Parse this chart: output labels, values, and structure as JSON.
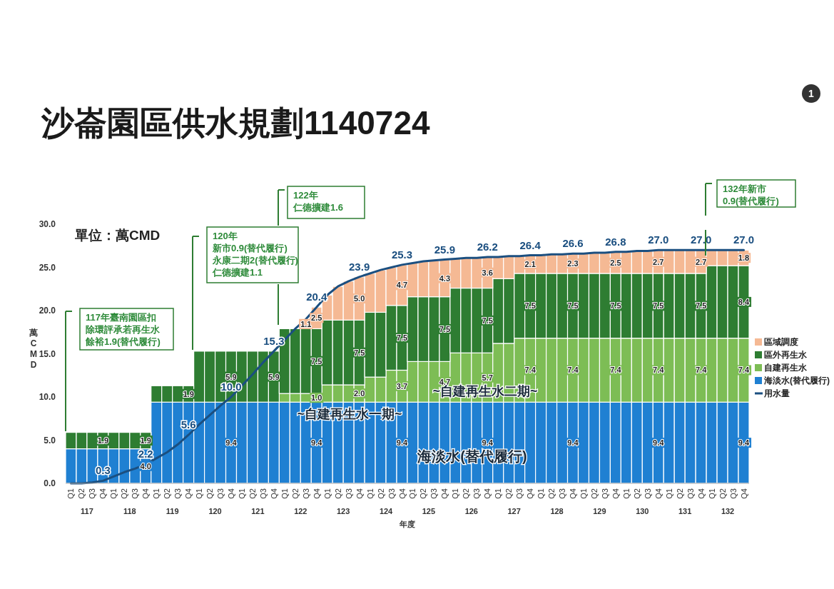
{
  "chart_data": {
    "type": "bar",
    "stacked": true,
    "title": "沙崙園區供水規劃1140724",
    "xlabel": "年度",
    "ylabel": "萬CMD",
    "legend": "right",
    "categories": [
      "Q1",
      "Q2",
      "Q3",
      "Q4",
      "Q1",
      "Q2",
      "Q3",
      "Q4",
      "Q1",
      "Q2",
      "Q3",
      "Q4",
      "Q1",
      "Q2",
      "Q3",
      "Q4",
      "Q1",
      "Q2",
      "Q3",
      "Q4",
      "Q1",
      "Q2",
      "Q3",
      "Q4",
      "Q1",
      "Q2",
      "Q3",
      "Q4",
      "Q1",
      "Q2",
      "Q3",
      "Q4",
      "Q1",
      "Q2",
      "Q3",
      "Q4",
      "Q1",
      "Q2",
      "Q3",
      "Q4",
      "Q1",
      "Q2",
      "Q3",
      "Q4",
      "Q1",
      "Q2",
      "Q3",
      "Q4",
      "Q1",
      "Q2",
      "Q3",
      "Q4",
      "Q1",
      "Q2",
      "Q3",
      "Q4",
      "Q1",
      "Q2",
      "Q3",
      "Q4",
      "Q1",
      "Q2",
      "Q3",
      "Q4"
    ],
    "ylim": [
      0,
      30
    ],
    "yticks": [
      {
        "value": 0,
        "label": "0.0"
      },
      {
        "value": 5,
        "label": "5.0"
      },
      {
        "value": 10,
        "label": "10.0"
      },
      {
        "value": 15,
        "label": "15.0"
      },
      {
        "value": 20,
        "label": "20.0"
      },
      {
        "value": 25,
        "label": "25.0"
      },
      {
        "value": 30,
        "label": "30.0"
      }
    ],
    "series": [
      {
        "name": "海淡水(替代履行)",
        "color": "#1f80d2",
        "values": [
          4.0,
          4.0,
          4.0,
          4.0,
          4.0,
          4.0,
          4.0,
          4.0,
          9.4,
          9.4,
          9.4,
          9.4,
          9.4,
          9.4,
          9.4,
          9.4,
          9.4,
          9.4,
          9.4,
          9.4,
          9.4,
          9.4,
          9.4,
          9.4,
          9.4,
          9.4,
          9.4,
          9.4,
          9.4,
          9.4,
          9.4,
          9.4,
          9.4,
          9.4,
          9.4,
          9.4,
          9.4,
          9.4,
          9.4,
          9.4,
          9.4,
          9.4,
          9.4,
          9.4,
          9.4,
          9.4,
          9.4,
          9.4,
          9.4,
          9.4,
          9.4,
          9.4,
          9.4,
          9.4,
          9.4,
          9.4,
          9.4,
          9.4,
          9.4,
          9.4,
          9.4,
          9.4,
          9.4,
          9.4
        ],
        "value_labels": [
          null,
          null,
          null,
          null,
          null,
          null,
          null,
          "4.0",
          null,
          null,
          null,
          null,
          null,
          null,
          null,
          "9.4",
          null,
          null,
          null,
          null,
          null,
          null,
          null,
          "9.4",
          null,
          null,
          null,
          null,
          null,
          null,
          null,
          "9.4",
          null,
          null,
          null,
          null,
          null,
          null,
          null,
          "9.4",
          null,
          null,
          null,
          null,
          null,
          null,
          null,
          "9.4",
          null,
          null,
          null,
          null,
          null,
          null,
          null,
          "9.4",
          null,
          null,
          null,
          null,
          null,
          null,
          null,
          "9.4"
        ]
      },
      {
        "name": "自建再生水",
        "color": "#7dbd55",
        "values": [
          null,
          null,
          null,
          null,
          null,
          null,
          null,
          null,
          null,
          null,
          null,
          null,
          null,
          null,
          null,
          null,
          null,
          null,
          null,
          null,
          1.0,
          1.0,
          1.0,
          1.0,
          2.0,
          2.0,
          2.0,
          2.0,
          2.9,
          2.9,
          3.7,
          3.7,
          4.7,
          4.7,
          4.7,
          4.7,
          5.7,
          5.7,
          5.7,
          5.7,
          6.8,
          6.8,
          7.4,
          7.4,
          7.4,
          7.4,
          7.4,
          7.4,
          7.4,
          7.4,
          7.4,
          7.4,
          7.4,
          7.4,
          7.4,
          7.4,
          7.4,
          7.4,
          7.4,
          7.4,
          7.4,
          7.4,
          7.4,
          7.4
        ],
        "value_labels": [
          null,
          null,
          null,
          null,
          null,
          null,
          null,
          null,
          null,
          null,
          null,
          null,
          null,
          null,
          null,
          null,
          null,
          null,
          null,
          null,
          null,
          null,
          null,
          "1.0",
          null,
          null,
          null,
          "2.0",
          null,
          null,
          null,
          "3.7",
          null,
          null,
          null,
          "4.7",
          null,
          null,
          null,
          "5.7",
          null,
          null,
          null,
          "7.4",
          null,
          null,
          null,
          "7.4",
          null,
          null,
          null,
          "7.4",
          null,
          null,
          null,
          "7.4",
          null,
          null,
          null,
          "7.4",
          null,
          null,
          null,
          "7.4"
        ]
      },
      {
        "name": "區外再生水",
        "color": "#2e7d32",
        "values": [
          1.9,
          1.9,
          1.9,
          1.9,
          1.9,
          1.9,
          1.9,
          1.9,
          1.9,
          1.9,
          1.9,
          1.9,
          5.9,
          5.9,
          5.9,
          5.9,
          5.9,
          5.9,
          5.9,
          5.9,
          7.5,
          7.5,
          7.5,
          7.5,
          7.5,
          7.5,
          7.5,
          7.5,
          7.5,
          7.5,
          7.5,
          7.5,
          7.5,
          7.5,
          7.5,
          7.5,
          7.5,
          7.5,
          7.5,
          7.5,
          7.5,
          7.5,
          7.5,
          7.5,
          7.5,
          7.5,
          7.5,
          7.5,
          7.5,
          7.5,
          7.5,
          7.5,
          7.5,
          7.5,
          7.5,
          7.5,
          7.5,
          7.5,
          7.5,
          7.5,
          8.4,
          8.4,
          8.4,
          8.4
        ],
        "value_labels": [
          null,
          null,
          null,
          "1.9",
          null,
          null,
          null,
          "1.9",
          null,
          null,
          null,
          "1.9",
          null,
          null,
          null,
          "5.9",
          null,
          null,
          null,
          "5.9",
          null,
          null,
          null,
          "7.5",
          null,
          null,
          null,
          "7.5",
          null,
          null,
          null,
          "7.5",
          null,
          null,
          null,
          "7.5",
          null,
          null,
          null,
          "7.5",
          null,
          null,
          null,
          "7.5",
          null,
          null,
          null,
          "7.5",
          null,
          null,
          null,
          "7.5",
          null,
          null,
          null,
          "7.5",
          null,
          null,
          null,
          "7.5",
          null,
          null,
          null,
          "8.4"
        ]
      },
      {
        "name": "區域調度",
        "color": "#f5b994",
        "values": [
          null,
          null,
          null,
          null,
          null,
          null,
          null,
          null,
          null,
          null,
          null,
          null,
          null,
          null,
          null,
          null,
          null,
          null,
          null,
          null,
          null,
          null,
          1.1,
          2.5,
          2.9,
          3.9,
          4.5,
          5.0,
          4.5,
          4.9,
          4.4,
          4.7,
          3.9,
          4.1,
          4.2,
          4.3,
          3.4,
          3.5,
          3.5,
          3.6,
          2.5,
          2.6,
          2.0,
          2.1,
          2.1,
          2.2,
          2.2,
          2.3,
          2.3,
          2.4,
          2.4,
          2.5,
          2.5,
          2.6,
          2.6,
          2.7,
          2.7,
          2.7,
          2.7,
          2.7,
          1.8,
          1.8,
          1.8,
          1.8
        ],
        "value_labels": [
          null,
          null,
          null,
          null,
          null,
          null,
          null,
          null,
          null,
          null,
          null,
          null,
          null,
          null,
          null,
          null,
          null,
          null,
          null,
          null,
          null,
          null,
          "1.1",
          "2.5",
          null,
          null,
          null,
          "5.0",
          null,
          null,
          null,
          "4.7",
          null,
          null,
          null,
          "4.3",
          null,
          null,
          null,
          "3.6",
          null,
          null,
          null,
          "2.1",
          null,
          null,
          null,
          "2.3",
          null,
          null,
          null,
          "2.5",
          null,
          null,
          null,
          "2.7",
          null,
          null,
          null,
          "2.7",
          null,
          null,
          null,
          "1.8"
        ]
      },
      {
        "name": "用水量",
        "type": "line",
        "color": "#1b4f80",
        "values": [
          0.0,
          0.0,
          0.1,
          0.3,
          0.8,
          1.3,
          1.7,
          2.2,
          2.9,
          3.6,
          4.5,
          5.6,
          6.8,
          7.9,
          9.0,
          10.0,
          11.3,
          12.6,
          14.0,
          15.3,
          16.6,
          17.9,
          19.0,
          20.4,
          21.8,
          22.8,
          23.4,
          23.9,
          24.3,
          24.7,
          25.0,
          25.3,
          25.5,
          25.7,
          25.8,
          25.9,
          26.0,
          26.1,
          26.1,
          26.2,
          26.2,
          26.3,
          26.3,
          26.4,
          26.4,
          26.5,
          26.5,
          26.6,
          26.6,
          26.7,
          26.7,
          26.8,
          26.8,
          26.9,
          26.9,
          27.0,
          27.0,
          27.0,
          27.0,
          27.0,
          27.0,
          27.0,
          27.0,
          27.0
        ],
        "value_labels": [
          null,
          null,
          null,
          "0.3",
          null,
          null,
          null,
          "2.2",
          null,
          null,
          null,
          "5.6",
          null,
          null,
          null,
          "10.0",
          null,
          null,
          null,
          "15.3",
          null,
          null,
          null,
          "20.4",
          null,
          null,
          null,
          "23.9",
          null,
          null,
          null,
          "25.3",
          null,
          null,
          null,
          "25.9",
          null,
          null,
          null,
          "26.2",
          null,
          null,
          null,
          "26.4",
          null,
          null,
          null,
          "26.6",
          null,
          null,
          null,
          "26.8",
          null,
          null,
          null,
          "27.0",
          null,
          null,
          null,
          "27.0",
          null,
          null,
          null,
          "27.0"
        ]
      }
    ],
    "annotations": [
      "單位：萬CMD",
      "117年臺南園區扣除環評承若再生水餘裕1.9(替代履行)",
      "120年新市0.9(替代履行)永康二期2(替代履行)仁德擴建1.1",
      "122年仁德擴建1.6",
      "132年新市0.9(替代履行)",
      "~自建再生水一期~",
      "~自建再生水二期~",
      "海淡水(替代履行)",
      "117",
      "118",
      "119",
      "120",
      "121",
      "122",
      "123",
      "124",
      "125",
      "126",
      "127",
      "128",
      "129",
      "130",
      "131",
      "132",
      "1"
    ]
  }
}
